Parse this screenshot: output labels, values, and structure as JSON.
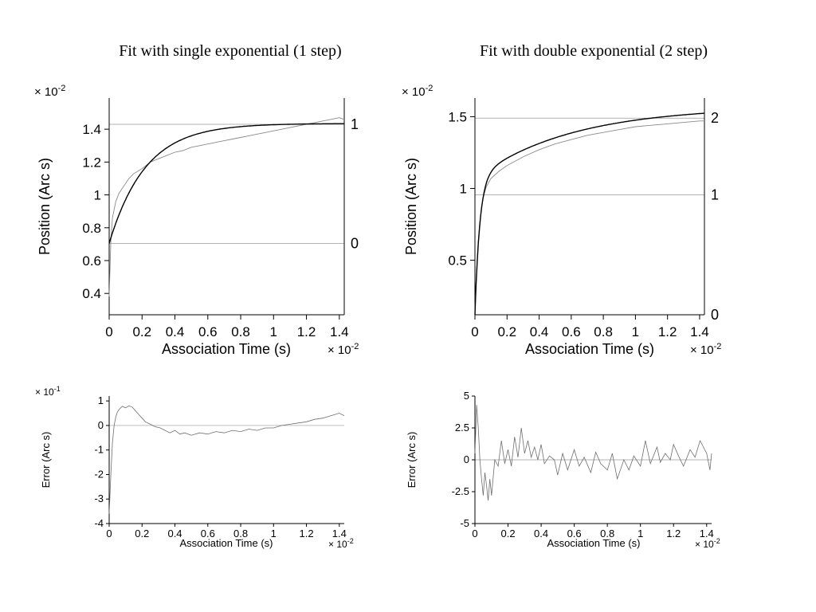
{
  "chart_data": [
    {
      "id": "fit1",
      "type": "line",
      "title": "Fit with single exponential (1 step)",
      "xlabel": "Association Time (s)",
      "ylabel": "Position (Arc s)",
      "x_multiplier": "× 10",
      "x_multiplier_exp": "-2",
      "y_multiplier": "× 10",
      "y_multiplier_exp": "-2",
      "xlim": [
        0,
        1.43
      ],
      "ylim": [
        0.27,
        1.59
      ],
      "xticks": [
        0,
        0.2,
        0.4,
        0.6,
        0.8,
        1,
        1.2,
        1.4
      ],
      "xtick_labels": [
        "0",
        "0.2",
        "0.4",
        "0.6",
        "0.8",
        "1",
        "1.2",
        "1.4"
      ],
      "yticks": [
        0.4,
        0.6,
        0.8,
        1,
        1.2,
        1.4
      ],
      "ytick_labels": [
        "0.4",
        "0.6",
        "0.8",
        "1",
        "1.2",
        "1.4"
      ],
      "step_levels": [
        {
          "label": "0",
          "value": 0.705
        },
        {
          "label": "1",
          "value": 1.43
        }
      ],
      "fit": {
        "model": "single_exponential",
        "y0": 0.705,
        "amplitudes": [
          0.73
        ],
        "taus": [
          0.22
        ]
      },
      "data_curve": {
        "x": [
          0,
          0.01,
          0.02,
          0.04,
          0.06,
          0.08,
          0.1,
          0.12,
          0.15,
          0.2,
          0.25,
          0.3,
          0.35,
          0.4,
          0.45,
          0.5,
          0.55,
          0.6,
          0.65,
          0.7,
          0.75,
          0.8,
          0.85,
          0.9,
          0.95,
          1.0,
          1.05,
          1.1,
          1.15,
          1.2,
          1.25,
          1.3,
          1.35,
          1.4,
          1.43
        ],
        "y": [
          0.38,
          0.72,
          0.86,
          0.96,
          1.01,
          1.04,
          1.07,
          1.1,
          1.13,
          1.16,
          1.2,
          1.22,
          1.24,
          1.26,
          1.27,
          1.29,
          1.3,
          1.31,
          1.32,
          1.33,
          1.34,
          1.35,
          1.36,
          1.37,
          1.38,
          1.39,
          1.4,
          1.41,
          1.42,
          1.43,
          1.44,
          1.45,
          1.46,
          1.47,
          1.46
        ]
      }
    },
    {
      "id": "fit2",
      "type": "line",
      "title": "Fit with double exponential (2 step)",
      "xlabel": "Association Time (s)",
      "ylabel": "Position (Arc s)",
      "x_multiplier": "× 10",
      "x_multiplier_exp": "-2",
      "y_multiplier": "× 10",
      "y_multiplier_exp": "-2",
      "xlim": [
        0,
        1.43
      ],
      "ylim": [
        0.12,
        1.63
      ],
      "xticks": [
        0,
        0.2,
        0.4,
        0.6,
        0.8,
        1,
        1.2,
        1.4
      ],
      "xtick_labels": [
        "0",
        "0.2",
        "0.4",
        "0.6",
        "0.8",
        "1",
        "1.2",
        "1.4"
      ],
      "yticks": [
        0.5,
        1,
        1.5
      ],
      "ytick_labels": [
        "0.5",
        "1",
        "1.5"
      ],
      "step_levels": [
        {
          "label": "0",
          "value": 0.12
        },
        {
          "label": "1",
          "value": 0.955
        },
        {
          "label": "2",
          "value": 1.49
        }
      ],
      "fit": {
        "model": "double_exponential",
        "y0": 0.12,
        "amplitudes": [
          0.95,
          0.5
        ],
        "taus": [
          0.03,
          0.6
        ]
      },
      "data_curve": {
        "x": [
          0,
          0.01,
          0.02,
          0.03,
          0.05,
          0.07,
          0.1,
          0.15,
          0.2,
          0.3,
          0.4,
          0.5,
          0.6,
          0.7,
          0.8,
          0.9,
          1.0,
          1.1,
          1.2,
          1.3,
          1.4,
          1.43
        ],
        "y": [
          0.15,
          0.42,
          0.62,
          0.76,
          0.93,
          1.01,
          1.07,
          1.12,
          1.16,
          1.22,
          1.27,
          1.31,
          1.34,
          1.37,
          1.39,
          1.41,
          1.43,
          1.44,
          1.45,
          1.46,
          1.47,
          1.47
        ]
      }
    },
    {
      "id": "err1",
      "type": "line",
      "xlabel": "Association Time (s)",
      "ylabel": "Error (Arc s)",
      "x_multiplier": "× 10",
      "x_multiplier_exp": "-2",
      "y_multiplier": "× 10",
      "y_multiplier_exp": "-1",
      "xlim": [
        0,
        1.43
      ],
      "ylim": [
        -4,
        1.2
      ],
      "xticks": [
        0,
        0.2,
        0.4,
        0.6,
        0.8,
        1,
        1.2,
        1.4
      ],
      "xtick_labels": [
        "0",
        "0.2",
        "0.4",
        "0.6",
        "0.8",
        "1",
        "1.2",
        "1.4"
      ],
      "yticks": [
        -4,
        -3,
        -2,
        -1,
        0,
        1
      ],
      "ytick_labels": [
        "-4",
        "-3",
        "-2",
        "-1",
        "0",
        "1"
      ],
      "zero_line": 0,
      "series": {
        "x": [
          0,
          0.01,
          0.02,
          0.03,
          0.04,
          0.05,
          0.06,
          0.08,
          0.1,
          0.12,
          0.14,
          0.16,
          0.18,
          0.2,
          0.22,
          0.25,
          0.28,
          0.31,
          0.34,
          0.37,
          0.4,
          0.43,
          0.46,
          0.5,
          0.55,
          0.6,
          0.65,
          0.7,
          0.75,
          0.8,
          0.85,
          0.9,
          0.95,
          1.0,
          1.05,
          1.1,
          1.15,
          1.2,
          1.25,
          1.3,
          1.35,
          1.4,
          1.43
        ],
        "y": [
          -3.6,
          -2.0,
          -0.7,
          0.0,
          0.35,
          0.55,
          0.65,
          0.78,
          0.72,
          0.8,
          0.75,
          0.6,
          0.45,
          0.3,
          0.15,
          0.05,
          -0.05,
          -0.1,
          -0.2,
          -0.3,
          -0.2,
          -0.35,
          -0.3,
          -0.4,
          -0.3,
          -0.35,
          -0.25,
          -0.3,
          -0.2,
          -0.25,
          -0.15,
          -0.2,
          -0.1,
          -0.1,
          0.0,
          0.05,
          0.1,
          0.15,
          0.25,
          0.3,
          0.4,
          0.5,
          0.4
        ]
      }
    },
    {
      "id": "err2",
      "type": "line",
      "xlabel": "Association Time (s)",
      "ylabel": "Error (Arc s)",
      "x_multiplier": "× 10",
      "x_multiplier_exp": "-2",
      "xlim": [
        0,
        1.43
      ],
      "ylim": [
        -5,
        5
      ],
      "xticks": [
        0,
        0.2,
        0.4,
        0.6,
        0.8,
        1,
        1.2,
        1.4
      ],
      "xtick_labels": [
        "0",
        "0.2",
        "0.4",
        "0.6",
        "0.8",
        "1",
        "1.2",
        "1.4"
      ],
      "yticks": [
        -5,
        -2.5,
        0,
        2.5,
        5
      ],
      "ytick_labels": [
        "-5",
        "-2.5",
        "0",
        "2.5",
        "5"
      ],
      "zero_line": 0,
      "series": {
        "x": [
          0,
          0.01,
          0.02,
          0.03,
          0.04,
          0.05,
          0.06,
          0.07,
          0.08,
          0.09,
          0.1,
          0.12,
          0.14,
          0.16,
          0.18,
          0.2,
          0.22,
          0.24,
          0.26,
          0.28,
          0.3,
          0.32,
          0.34,
          0.36,
          0.38,
          0.4,
          0.42,
          0.45,
          0.48,
          0.5,
          0.53,
          0.56,
          0.6,
          0.63,
          0.66,
          0.7,
          0.73,
          0.76,
          0.8,
          0.83,
          0.86,
          0.9,
          0.93,
          0.96,
          1.0,
          1.03,
          1.06,
          1.1,
          1.12,
          1.15,
          1.18,
          1.2,
          1.23,
          1.26,
          1.3,
          1.33,
          1.36,
          1.4,
          1.42,
          1.43
        ],
        "y": [
          0.5,
          4.3,
          2.5,
          0.0,
          -1.5,
          -2.8,
          -1.0,
          -2.0,
          -3.2,
          -1.5,
          -2.8,
          0.0,
          -0.5,
          1.5,
          -0.3,
          0.8,
          -0.5,
          1.8,
          0.2,
          2.5,
          0.5,
          1.5,
          0.2,
          1.0,
          0.0,
          1.2,
          -0.3,
          0.3,
          0.0,
          -1.2,
          0.5,
          -0.8,
          0.8,
          -0.5,
          0.2,
          -1.0,
          0.6,
          -0.3,
          -0.8,
          0.5,
          -1.5,
          0.0,
          -0.8,
          0.3,
          -0.5,
          1.5,
          -0.3,
          1.0,
          -0.2,
          0.5,
          0.0,
          1.2,
          0.3,
          -0.5,
          0.8,
          0.2,
          1.5,
          0.5,
          -0.8,
          0.5
        ]
      }
    }
  ]
}
